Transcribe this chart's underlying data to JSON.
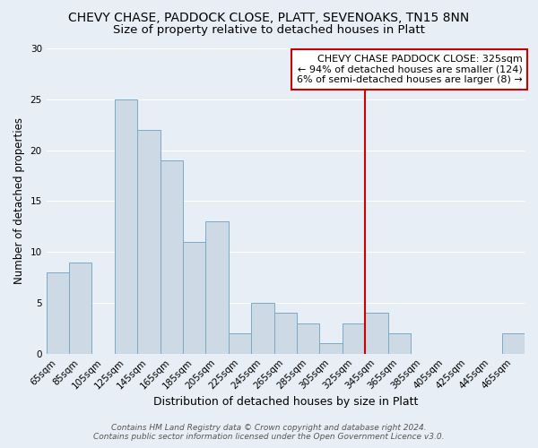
{
  "title": "CHEVY CHASE, PADDOCK CLOSE, PLATT, SEVENOAKS, TN15 8NN",
  "subtitle": "Size of property relative to detached houses in Platt",
  "xlabel": "Distribution of detached houses by size in Platt",
  "ylabel": "Number of detached properties",
  "bar_color": "#cdd9e5",
  "bar_edge_color": "#7aaac8",
  "background_color": "#e8eef5",
  "grid_color": "#ffffff",
  "categories": [
    "65sqm",
    "85sqm",
    "105sqm",
    "125sqm",
    "145sqm",
    "165sqm",
    "185sqm",
    "205sqm",
    "225sqm",
    "245sqm",
    "265sqm",
    "285sqm",
    "305sqm",
    "325sqm",
    "345sqm",
    "365sqm",
    "385sqm",
    "405sqm",
    "425sqm",
    "445sqm",
    "465sqm"
  ],
  "values": [
    8,
    9,
    0,
    25,
    22,
    19,
    11,
    13,
    2,
    5,
    4,
    3,
    1,
    3,
    4,
    2,
    0,
    0,
    0,
    0,
    2
  ],
  "ylim": [
    0,
    30
  ],
  "yticks": [
    0,
    5,
    10,
    15,
    20,
    25,
    30
  ],
  "vline_x_index": 13,
  "vline_color": "#cc0000",
  "annotation_title": "CHEVY CHASE PADDOCK CLOSE: 325sqm",
  "annotation_line1": "← 94% of detached houses are smaller (124)",
  "annotation_line2": "6% of semi-detached houses are larger (8) →",
  "annotation_box_color": "#ffffff",
  "annotation_box_edge": "#cc0000",
  "footer1": "Contains HM Land Registry data © Crown copyright and database right 2024.",
  "footer2": "Contains public sector information licensed under the Open Government Licence v3.0.",
  "title_fontsize": 10,
  "subtitle_fontsize": 9.5,
  "xlabel_fontsize": 9,
  "ylabel_fontsize": 8.5,
  "tick_fontsize": 7.5,
  "annotation_fontsize": 8,
  "footer_fontsize": 6.5
}
